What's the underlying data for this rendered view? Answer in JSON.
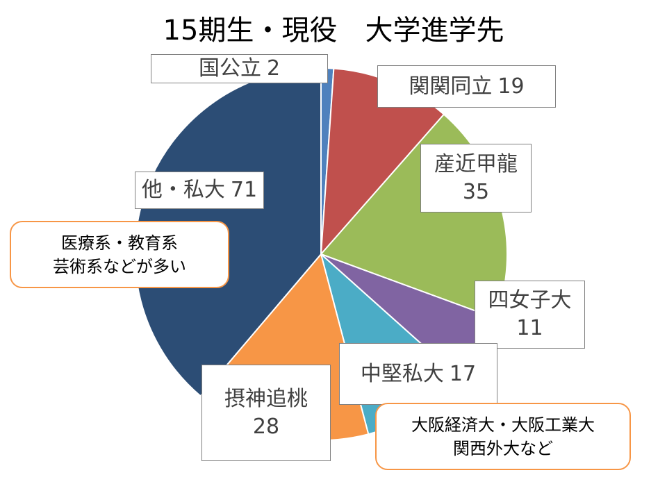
{
  "chart_data": {
    "type": "pie",
    "title": "15期生・現役　大学進学先",
    "slices": [
      {
        "name": "国公立",
        "value": 2,
        "color": "#4f81bd"
      },
      {
        "name": "関関同立",
        "value": 19,
        "color": "#c0504d"
      },
      {
        "name": "産近甲龍",
        "value": 35,
        "color": "#9bbb59"
      },
      {
        "name": "四女子大",
        "value": 11,
        "color": "#8064a2"
      },
      {
        "name": "中堅私大",
        "value": 17,
        "color": "#4bacc6"
      },
      {
        "name": "摂神追桃",
        "value": 28,
        "color": "#f79646"
      },
      {
        "name": "他・私大",
        "value": 71,
        "color": "#2c4d75"
      }
    ],
    "start_angle_deg": 0,
    "direction": "clockwise"
  },
  "annotations": [
    {
      "lines": [
        "医療系・教育系",
        "芸術系などが多い"
      ]
    },
    {
      "lines": [
        "大阪経済大・大阪工業大",
        "関西外大など"
      ]
    }
  ]
}
